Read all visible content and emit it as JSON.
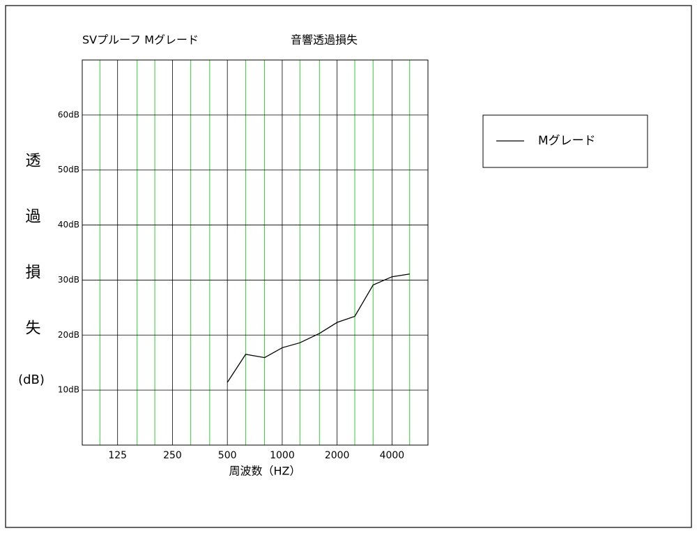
{
  "chart_data": {
    "type": "line",
    "title": "SVプルーフ Mグレード",
    "subtitle": "音響透過損失",
    "xlabel": "周波数（HZ）",
    "ylabel": "透過損失",
    "ylabel_unit": "(dB)",
    "x": [
      500,
      630,
      800,
      1000,
      1250,
      1600,
      2000,
      2500,
      3150,
      4000,
      5000
    ],
    "series": [
      {
        "name": "Mグレード",
        "color": "#000000",
        "values": [
          11.4,
          16.5,
          15.9,
          17.7,
          18.6,
          20.3,
          22.3,
          23.4,
          29.1,
          30.6,
          31.1
        ]
      }
    ],
    "xlog": true,
    "xlim": [
      80,
      6300
    ],
    "xticks": [
      125,
      250,
      500,
      1000,
      2000,
      4000
    ],
    "xminorticks": [
      100,
      160,
      200,
      315,
      400,
      630,
      800,
      1250,
      1600,
      2500,
      3150,
      5000
    ],
    "ylim": [
      0,
      70
    ],
    "yticks": [
      {
        "value": 10,
        "label": "10dB"
      },
      {
        "value": 20,
        "label": "20dB"
      },
      {
        "value": 30,
        "label": "30dB"
      },
      {
        "value": 40,
        "label": "40dB"
      },
      {
        "value": 50,
        "label": "50dB"
      },
      {
        "value": 60,
        "label": "60dB"
      }
    ],
    "grid": true,
    "grid_color": "#000000",
    "minor_grid_color": "#33cc33",
    "legend": "upper right"
  }
}
